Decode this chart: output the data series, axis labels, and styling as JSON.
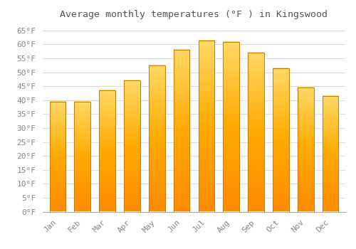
{
  "title": "Average monthly temperatures (°F ) in Kingswood",
  "months": [
    "Jan",
    "Feb",
    "Mar",
    "Apr",
    "May",
    "Jun",
    "Jul",
    "Aug",
    "Sep",
    "Oct",
    "Nov",
    "Dec"
  ],
  "values": [
    39.5,
    39.5,
    43.5,
    47.0,
    52.5,
    58.0,
    61.5,
    61.0,
    57.0,
    51.5,
    44.5,
    41.5
  ],
  "bar_color_top": "#FFD966",
  "bar_color_mid": "#FFAA00",
  "bar_color_bottom": "#FF8C00",
  "bar_edge_color": "#CC7700",
  "background_color": "#FFFFFF",
  "grid_color": "#DDDDDD",
  "title_fontsize": 9.5,
  "tick_fontsize": 8,
  "ylim": [
    0,
    67
  ],
  "yticks": [
    0,
    5,
    10,
    15,
    20,
    25,
    30,
    35,
    40,
    45,
    50,
    55,
    60,
    65
  ]
}
